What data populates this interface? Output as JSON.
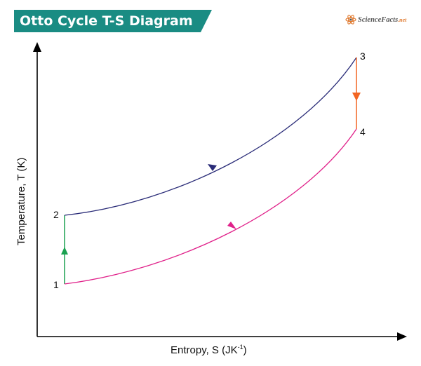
{
  "header": {
    "title": "Otto Cycle T-S Diagram",
    "banner_color": "#1a8c83"
  },
  "brand": {
    "name": "ScienceFacts",
    "suffix": ".net",
    "icon": "atom-icon"
  },
  "axes": {
    "x_label": "Entropy, S (JK",
    "x_label_superscript": "-1",
    "x_label_end": ")",
    "y_label": "Temperature, T (K)"
  },
  "points": [
    {
      "id": "1",
      "label": "1"
    },
    {
      "id": "2",
      "label": "2"
    },
    {
      "id": "3",
      "label": "3"
    },
    {
      "id": "4",
      "label": "4"
    }
  ],
  "processes": [
    {
      "from": "1",
      "to": "2",
      "color": "#1aa150",
      "arrow": "up"
    },
    {
      "from": "2",
      "to": "3",
      "color": "#2a2c78",
      "arrow": "down"
    },
    {
      "from": "3",
      "to": "4",
      "color": "#f26522",
      "arrow": "down"
    },
    {
      "from": "4",
      "to": "1",
      "color": "#e0218a",
      "arrow": "up"
    }
  ]
}
